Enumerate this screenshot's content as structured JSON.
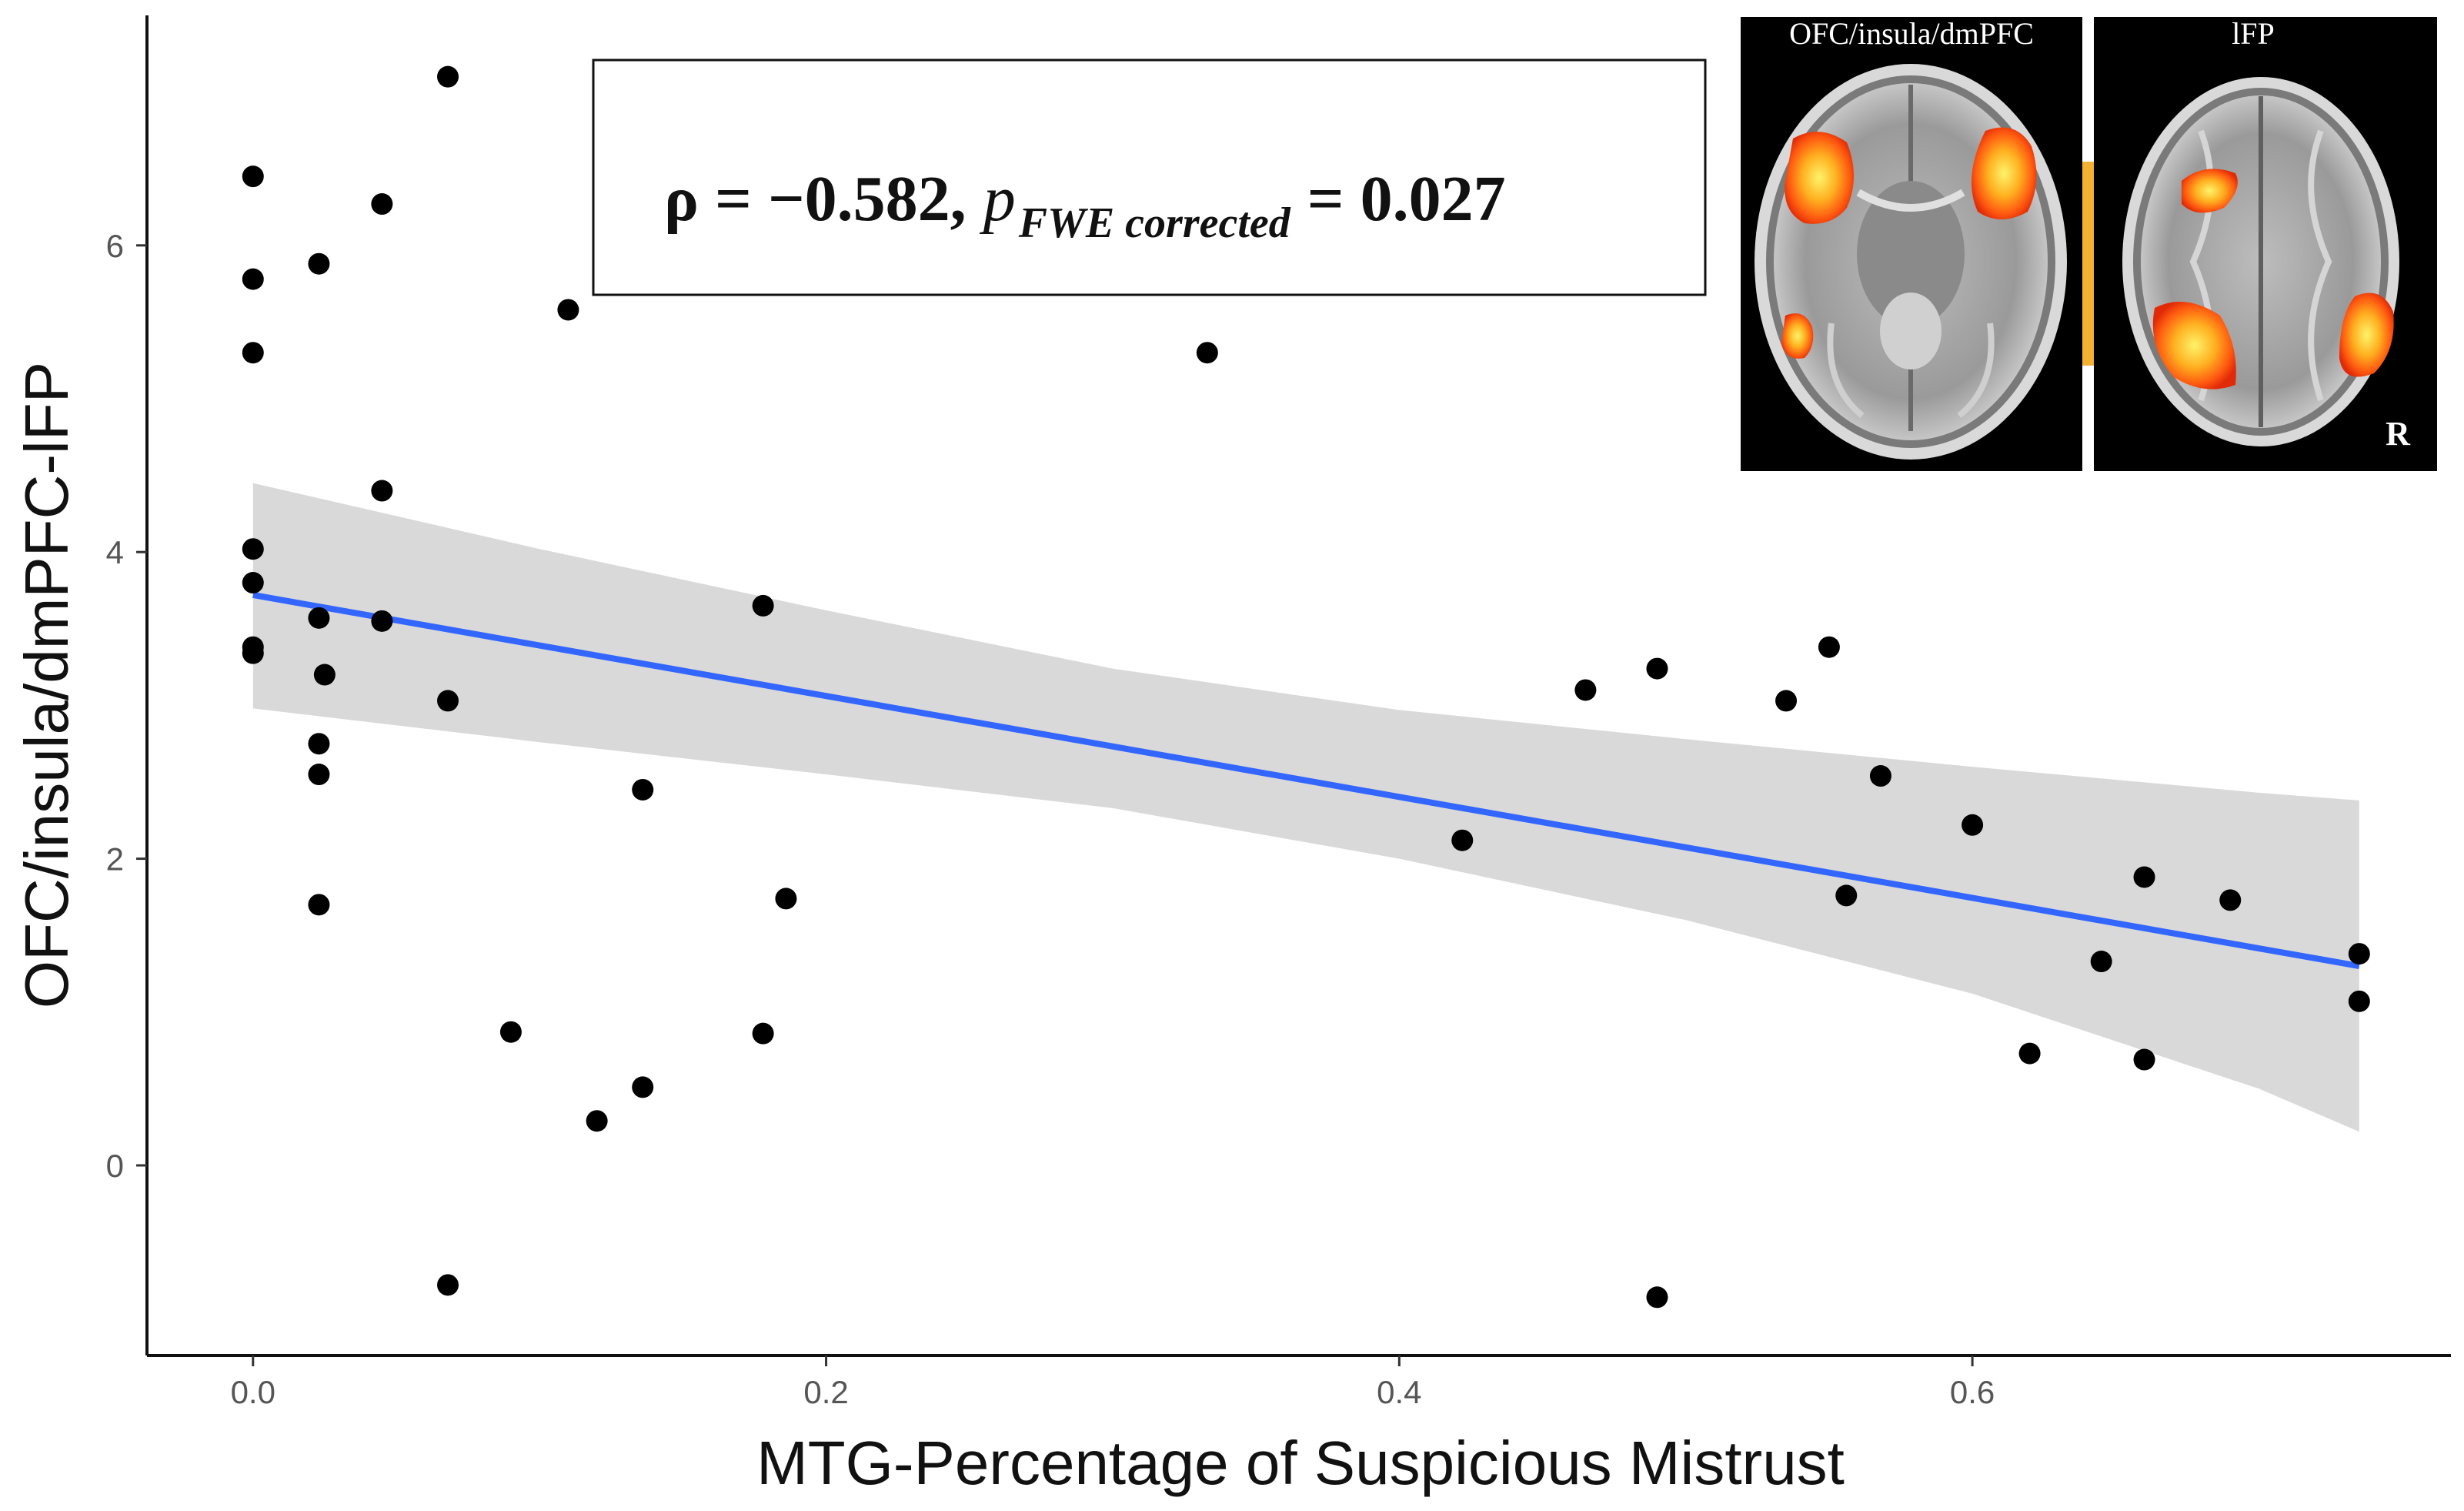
{
  "chart_data": {
    "type": "scatter",
    "xlabel": "MTG-Percentage of Suspicious Mistrust",
    "ylabel": "OFC/insula/dmPFC-lFP",
    "xlim": [
      -0.037,
      0.767
    ],
    "ylim": [
      -1.24,
      7.5
    ],
    "xticks": [
      0.0,
      0.2,
      0.4,
      0.6
    ],
    "xtick_labels": [
      "0.0",
      "0.2",
      "0.4",
      "0.6"
    ],
    "yticks": [
      0,
      2,
      4,
      6
    ],
    "ytick_labels": [
      "0",
      "2",
      "4",
      "6"
    ],
    "grid": false,
    "annotation": {
      "rho": "ρ = −0.582,",
      "p_symbol": "p",
      "p_subscript": "FWE corrected",
      "p_value": "= 0.027"
    },
    "points": [
      {
        "x": 0.0,
        "y": 6.45
      },
      {
        "x": 0.0,
        "y": 5.78
      },
      {
        "x": 0.0,
        "y": 5.3
      },
      {
        "x": 0.0,
        "y": 4.02
      },
      {
        "x": 0.0,
        "y": 3.8
      },
      {
        "x": 0.0,
        "y": 3.38
      },
      {
        "x": 0.0,
        "y": 3.34
      },
      {
        "x": 0.023,
        "y": 5.88
      },
      {
        "x": 0.023,
        "y": 3.57
      },
      {
        "x": 0.025,
        "y": 3.2
      },
      {
        "x": 0.023,
        "y": 2.75
      },
      {
        "x": 0.023,
        "y": 2.55
      },
      {
        "x": 0.023,
        "y": 1.7
      },
      {
        "x": 0.045,
        "y": 6.27
      },
      {
        "x": 0.045,
        "y": 4.4
      },
      {
        "x": 0.045,
        "y": 3.55
      },
      {
        "x": 0.068,
        "y": 7.1
      },
      {
        "x": 0.068,
        "y": 3.03
      },
      {
        "x": 0.068,
        "y": -0.78
      },
      {
        "x": 0.09,
        "y": 0.87
      },
      {
        "x": 0.11,
        "y": 5.58
      },
      {
        "x": 0.12,
        "y": 0.29
      },
      {
        "x": 0.136,
        "y": 2.45
      },
      {
        "x": 0.136,
        "y": 0.51
      },
      {
        "x": 0.178,
        "y": 3.65
      },
      {
        "x": 0.178,
        "y": 0.86
      },
      {
        "x": 0.186,
        "y": 1.74
      },
      {
        "x": 0.333,
        "y": 5.3
      },
      {
        "x": 0.422,
        "y": 2.12
      },
      {
        "x": 0.465,
        "y": 3.1
      },
      {
        "x": 0.49,
        "y": 3.24
      },
      {
        "x": 0.49,
        "y": -0.86
      },
      {
        "x": 0.535,
        "y": 3.03
      },
      {
        "x": 0.55,
        "y": 3.38
      },
      {
        "x": 0.556,
        "y": 1.76
      },
      {
        "x": 0.568,
        "y": 2.54
      },
      {
        "x": 0.6,
        "y": 2.22
      },
      {
        "x": 0.62,
        "y": 0.73
      },
      {
        "x": 0.645,
        "y": 1.33
      },
      {
        "x": 0.66,
        "y": 1.88
      },
      {
        "x": 0.66,
        "y": 0.69
      },
      {
        "x": 0.69,
        "y": 1.73
      },
      {
        "x": 0.735,
        "y": 1.38
      },
      {
        "x": 0.735,
        "y": 1.07
      }
    ],
    "fit_line": {
      "x": [
        0.0,
        0.735
      ],
      "y": [
        3.72,
        1.3
      ],
      "color": "#3366FF"
    },
    "confidence_band": {
      "x": [
        0.0,
        0.1,
        0.2,
        0.3,
        0.4,
        0.5,
        0.6,
        0.7,
        0.735
      ],
      "upper": [
        4.45,
        4.02,
        3.62,
        3.24,
        2.97,
        2.78,
        2.6,
        2.43,
        2.38
      ],
      "lower": [
        2.98,
        2.76,
        2.55,
        2.33,
        2.0,
        1.6,
        1.12,
        0.5,
        0.22
      ],
      "color": "#D9D9D9"
    },
    "point_color": "#000000"
  },
  "inset": {
    "left_label": "OFC/insula/dmPFC",
    "right_label": "lFP",
    "orientation_label": "R"
  }
}
